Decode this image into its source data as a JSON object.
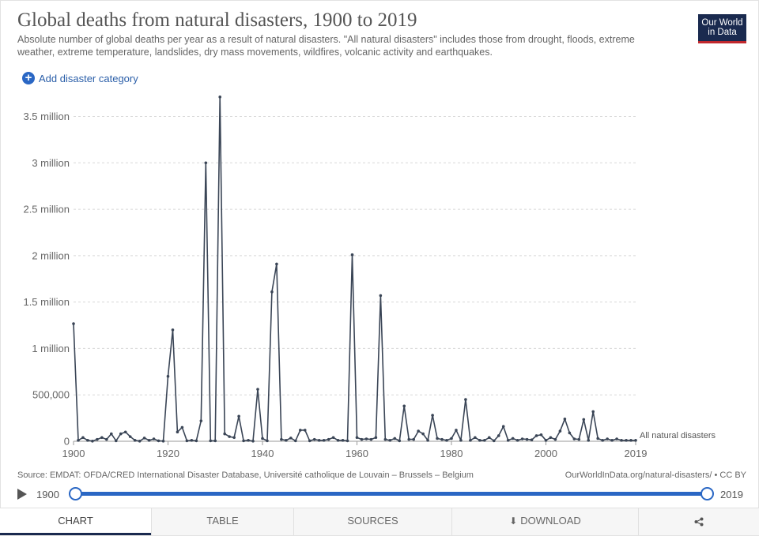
{
  "header": {
    "title": "Global deaths from natural disasters, 1900 to 2019",
    "subtitle": "Absolute number of global deaths per year as a result of natural disasters. \"All natural disasters\" includes those from drought, floods, extreme weather, extreme temperature, landslides, dry mass movements, wildfires, volcanic activity and earthquakes.",
    "logo_line1": "Our World",
    "logo_line2": "in Data"
  },
  "controls": {
    "add_label": "Add disaster category"
  },
  "footer": {
    "source": "Source: EMDAT: OFDA/CRED International Disaster Database, Université catholique de Louvain – Brussels – Belgium",
    "license": "OurWorldInData.org/natural-disasters/ • CC BY"
  },
  "timeline": {
    "start": "1900",
    "end": "2019"
  },
  "tabs": {
    "chart": "CHART",
    "table": "TABLE",
    "sources": "SOURCES",
    "download": "DOWNLOAD"
  },
  "colors": {
    "line": "#3a4556",
    "accent": "#2a67c4",
    "logo_bg": "#1a2a4f",
    "logo_bar": "#c1282d"
  },
  "chart_data": {
    "type": "line",
    "title": "Global deaths from natural disasters, 1900 to 2019",
    "xlim": [
      1900,
      2019
    ],
    "ylim": [
      0,
      3700000
    ],
    "x_ticks": [
      1900,
      1920,
      1940,
      1960,
      1980,
      2000,
      2019
    ],
    "x_tick_labels": [
      "1900",
      "1920",
      "1940",
      "1960",
      "1980",
      "2000",
      "2019"
    ],
    "y_ticks": [
      0,
      500000,
      1000000,
      1500000,
      2000000,
      2500000,
      3000000,
      3500000
    ],
    "y_tick_labels": [
      "0",
      "500,000",
      "1 million",
      "1.5 million",
      "2 million",
      "2.5 million",
      "3 million",
      "3.5 million"
    ],
    "grid": "horizontal dashed",
    "series": [
      {
        "name": "All natural disasters",
        "x": [
          1900,
          1901,
          1902,
          1903,
          1904,
          1905,
          1906,
          1907,
          1908,
          1909,
          1910,
          1911,
          1912,
          1913,
          1914,
          1915,
          1916,
          1917,
          1918,
          1919,
          1920,
          1921,
          1922,
          1923,
          1924,
          1925,
          1926,
          1927,
          1928,
          1929,
          1930,
          1931,
          1932,
          1933,
          1934,
          1935,
          1936,
          1937,
          1938,
          1939,
          1940,
          1941,
          1942,
          1943,
          1944,
          1945,
          1946,
          1947,
          1948,
          1949,
          1950,
          1951,
          1952,
          1953,
          1954,
          1955,
          1956,
          1957,
          1958,
          1959,
          1960,
          1961,
          1962,
          1963,
          1964,
          1965,
          1966,
          1967,
          1968,
          1969,
          1970,
          1971,
          1972,
          1973,
          1974,
          1975,
          1976,
          1977,
          1978,
          1979,
          1980,
          1981,
          1982,
          1983,
          1984,
          1985,
          1986,
          1987,
          1988,
          1989,
          1990,
          1991,
          1992,
          1993,
          1994,
          1995,
          1996,
          1997,
          1998,
          1999,
          2000,
          2001,
          2002,
          2003,
          2004,
          2005,
          2006,
          2007,
          2008,
          2009,
          2010,
          2011,
          2012,
          2013,
          2014,
          2015,
          2016,
          2017,
          2018,
          2019
        ],
        "values": [
          1267000,
          10000,
          40000,
          10000,
          2000,
          20000,
          40000,
          20000,
          80000,
          5000,
          80000,
          100000,
          50000,
          10000,
          2000,
          35000,
          10000,
          25000,
          5000,
          2000,
          700000,
          1200000,
          100000,
          150000,
          5000,
          10000,
          5000,
          220000,
          3000000,
          5000,
          5000,
          3710000,
          80000,
          50000,
          40000,
          270000,
          5000,
          10000,
          2000,
          560000,
          30000,
          5000,
          1610000,
          1910000,
          20000,
          10000,
          35000,
          5000,
          120000,
          120000,
          5000,
          20000,
          10000,
          10000,
          20000,
          40000,
          10000,
          10000,
          5000,
          2010000,
          40000,
          20000,
          25000,
          20000,
          40000,
          1570000,
          20000,
          10000,
          30000,
          5000,
          380000,
          20000,
          20000,
          110000,
          80000,
          10000,
          280000,
          30000,
          20000,
          10000,
          30000,
          120000,
          10000,
          450000,
          10000,
          40000,
          10000,
          10000,
          40000,
          5000,
          60000,
          160000,
          10000,
          30000,
          10000,
          25000,
          20000,
          15000,
          60000,
          70000,
          10000,
          40000,
          20000,
          110000,
          240000,
          90000,
          25000,
          20000,
          235000,
          10000,
          320000,
          30000,
          10000,
          25000,
          10000,
          25000,
          10000,
          10000,
          10000,
          10000
        ]
      }
    ]
  }
}
